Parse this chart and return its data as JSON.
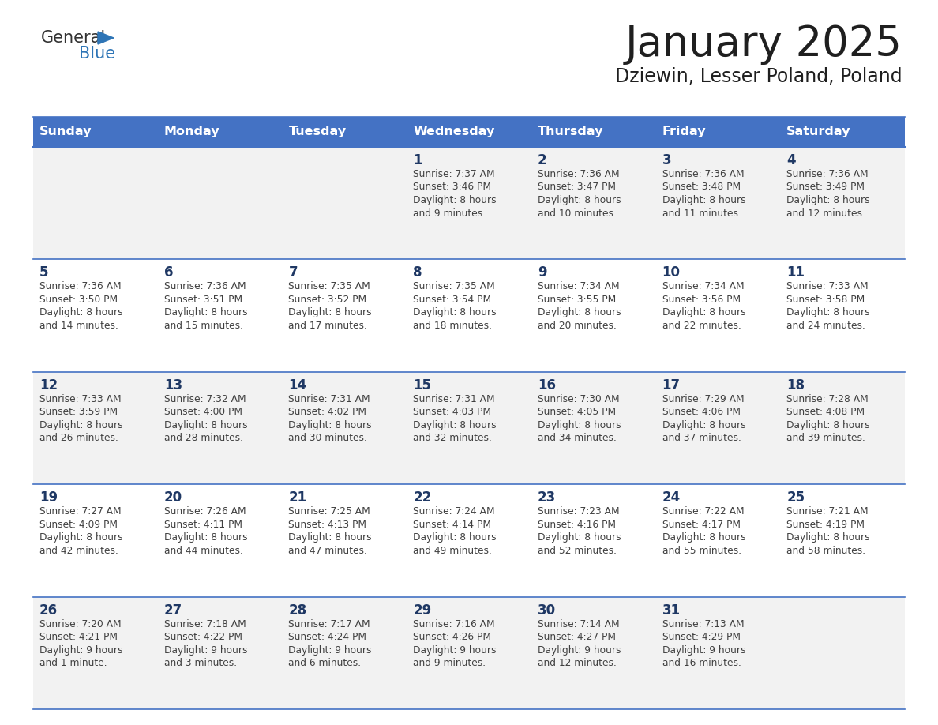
{
  "title": "January 2025",
  "subtitle": "Dziewin, Lesser Poland, Poland",
  "days_of_week": [
    "Sunday",
    "Monday",
    "Tuesday",
    "Wednesday",
    "Thursday",
    "Friday",
    "Saturday"
  ],
  "header_bg": "#4472C4",
  "header_text": "#FFFFFF",
  "row_bg_odd": "#F2F2F2",
  "row_bg_even": "#FFFFFF",
  "day_number_color": "#1F3864",
  "cell_text_color": "#404040",
  "line_color": "#4472C4",
  "calendar": [
    [
      {
        "day": null,
        "sunrise": null,
        "sunset": null,
        "daylight": ""
      },
      {
        "day": null,
        "sunrise": null,
        "sunset": null,
        "daylight": ""
      },
      {
        "day": null,
        "sunrise": null,
        "sunset": null,
        "daylight": ""
      },
      {
        "day": 1,
        "sunrise": "7:37 AM",
        "sunset": "3:46 PM",
        "daylight": "8 hours\nand 9 minutes."
      },
      {
        "day": 2,
        "sunrise": "7:36 AM",
        "sunset": "3:47 PM",
        "daylight": "8 hours\nand 10 minutes."
      },
      {
        "day": 3,
        "sunrise": "7:36 AM",
        "sunset": "3:48 PM",
        "daylight": "8 hours\nand 11 minutes."
      },
      {
        "day": 4,
        "sunrise": "7:36 AM",
        "sunset": "3:49 PM",
        "daylight": "8 hours\nand 12 minutes."
      }
    ],
    [
      {
        "day": 5,
        "sunrise": "7:36 AM",
        "sunset": "3:50 PM",
        "daylight": "8 hours\nand 14 minutes."
      },
      {
        "day": 6,
        "sunrise": "7:36 AM",
        "sunset": "3:51 PM",
        "daylight": "8 hours\nand 15 minutes."
      },
      {
        "day": 7,
        "sunrise": "7:35 AM",
        "sunset": "3:52 PM",
        "daylight": "8 hours\nand 17 minutes."
      },
      {
        "day": 8,
        "sunrise": "7:35 AM",
        "sunset": "3:54 PM",
        "daylight": "8 hours\nand 18 minutes."
      },
      {
        "day": 9,
        "sunrise": "7:34 AM",
        "sunset": "3:55 PM",
        "daylight": "8 hours\nand 20 minutes."
      },
      {
        "day": 10,
        "sunrise": "7:34 AM",
        "sunset": "3:56 PM",
        "daylight": "8 hours\nand 22 minutes."
      },
      {
        "day": 11,
        "sunrise": "7:33 AM",
        "sunset": "3:58 PM",
        "daylight": "8 hours\nand 24 minutes."
      }
    ],
    [
      {
        "day": 12,
        "sunrise": "7:33 AM",
        "sunset": "3:59 PM",
        "daylight": "8 hours\nand 26 minutes."
      },
      {
        "day": 13,
        "sunrise": "7:32 AM",
        "sunset": "4:00 PM",
        "daylight": "8 hours\nand 28 minutes."
      },
      {
        "day": 14,
        "sunrise": "7:31 AM",
        "sunset": "4:02 PM",
        "daylight": "8 hours\nand 30 minutes."
      },
      {
        "day": 15,
        "sunrise": "7:31 AM",
        "sunset": "4:03 PM",
        "daylight": "8 hours\nand 32 minutes."
      },
      {
        "day": 16,
        "sunrise": "7:30 AM",
        "sunset": "4:05 PM",
        "daylight": "8 hours\nand 34 minutes."
      },
      {
        "day": 17,
        "sunrise": "7:29 AM",
        "sunset": "4:06 PM",
        "daylight": "8 hours\nand 37 minutes."
      },
      {
        "day": 18,
        "sunrise": "7:28 AM",
        "sunset": "4:08 PM",
        "daylight": "8 hours\nand 39 minutes."
      }
    ],
    [
      {
        "day": 19,
        "sunrise": "7:27 AM",
        "sunset": "4:09 PM",
        "daylight": "8 hours\nand 42 minutes."
      },
      {
        "day": 20,
        "sunrise": "7:26 AM",
        "sunset": "4:11 PM",
        "daylight": "8 hours\nand 44 minutes."
      },
      {
        "day": 21,
        "sunrise": "7:25 AM",
        "sunset": "4:13 PM",
        "daylight": "8 hours\nand 47 minutes."
      },
      {
        "day": 22,
        "sunrise": "7:24 AM",
        "sunset": "4:14 PM",
        "daylight": "8 hours\nand 49 minutes."
      },
      {
        "day": 23,
        "sunrise": "7:23 AM",
        "sunset": "4:16 PM",
        "daylight": "8 hours\nand 52 minutes."
      },
      {
        "day": 24,
        "sunrise": "7:22 AM",
        "sunset": "4:17 PM",
        "daylight": "8 hours\nand 55 minutes."
      },
      {
        "day": 25,
        "sunrise": "7:21 AM",
        "sunset": "4:19 PM",
        "daylight": "8 hours\nand 58 minutes."
      }
    ],
    [
      {
        "day": 26,
        "sunrise": "7:20 AM",
        "sunset": "4:21 PM",
        "daylight": "9 hours\nand 1 minute."
      },
      {
        "day": 27,
        "sunrise": "7:18 AM",
        "sunset": "4:22 PM",
        "daylight": "9 hours\nand 3 minutes."
      },
      {
        "day": 28,
        "sunrise": "7:17 AM",
        "sunset": "4:24 PM",
        "daylight": "9 hours\nand 6 minutes."
      },
      {
        "day": 29,
        "sunrise": "7:16 AM",
        "sunset": "4:26 PM",
        "daylight": "9 hours\nand 9 minutes."
      },
      {
        "day": 30,
        "sunrise": "7:14 AM",
        "sunset": "4:27 PM",
        "daylight": "9 hours\nand 12 minutes."
      },
      {
        "day": 31,
        "sunrise": "7:13 AM",
        "sunset": "4:29 PM",
        "daylight": "9 hours\nand 16 minutes."
      },
      {
        "day": null,
        "sunrise": null,
        "sunset": null,
        "daylight": ""
      }
    ]
  ]
}
